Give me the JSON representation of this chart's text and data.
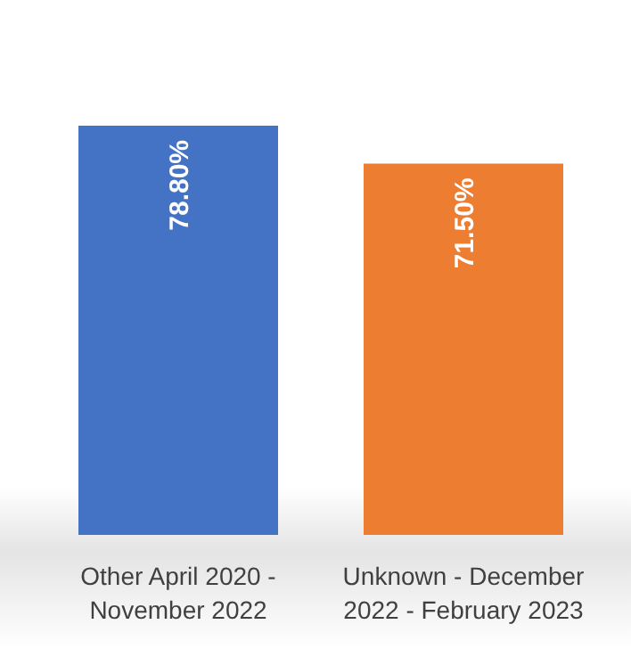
{
  "chart_data": {
    "type": "bar",
    "categories": [
      "Other April 2020 - November 2022",
      "Unknown - December 2022 - February 2023"
    ],
    "values": [
      78.8,
      71.5
    ],
    "colors": [
      "#4472c4",
      "#ed7d31"
    ],
    "value_labels": [
      "78.80%",
      "71.50%"
    ]
  }
}
